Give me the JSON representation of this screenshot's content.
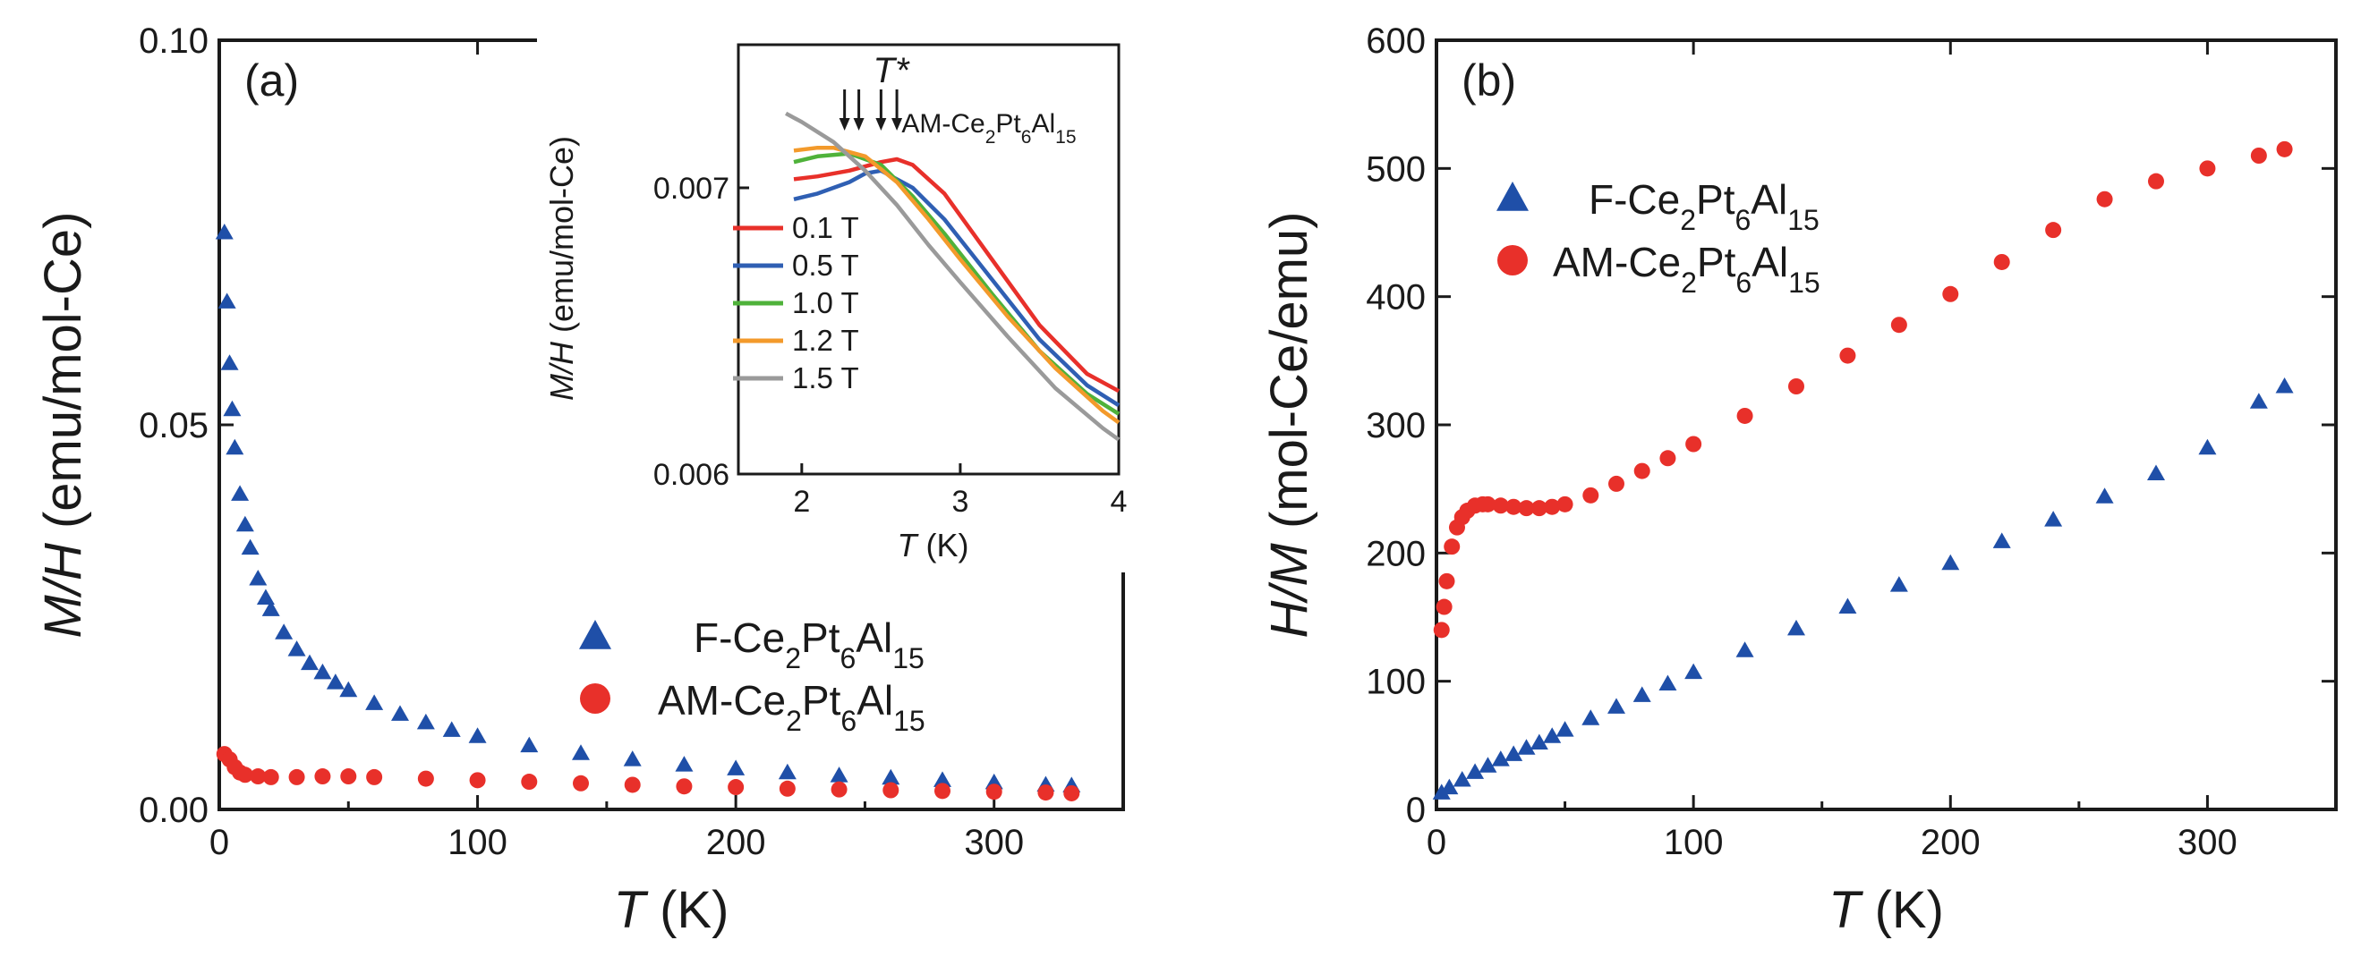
{
  "chart_data": [
    {
      "panel": "(a)",
      "type": "scatter",
      "xlabel_italic": "T",
      "xlabel_unit": "(K)",
      "ylabel_italic": "M/H",
      "ylabel_unit": "(emu/mol-Ce)",
      "xlim": [
        0,
        350
      ],
      "ylim": [
        0,
        0.1
      ],
      "xticks": [
        0,
        100,
        200,
        300
      ],
      "xtick_labels": [
        "0",
        "100",
        "200",
        "300"
      ],
      "yticks": [
        0,
        0.05,
        0.1
      ],
      "ytick_labels": [
        "0.00",
        "0.05",
        "0.10"
      ],
      "legend_position": "lower-right",
      "series": [
        {
          "name": "F-Ce2Pt6Al15",
          "legend_parts": [
            "F-Ce",
            "2",
            "Pt",
            "6",
            "Al",
            "15"
          ],
          "marker": "triangle",
          "color": "#1f4fa8",
          "x": [
            2,
            3,
            4,
            5,
            6,
            8,
            10,
            12,
            15,
            18,
            20,
            25,
            30,
            35,
            40,
            45,
            50,
            60,
            70,
            80,
            90,
            100,
            120,
            140,
            160,
            180,
            200,
            220,
            240,
            260,
            280,
            300,
            320,
            330
          ],
          "y": [
            0.075,
            0.066,
            0.058,
            0.052,
            0.047,
            0.041,
            0.037,
            0.034,
            0.03,
            0.0275,
            0.026,
            0.023,
            0.0208,
            0.019,
            0.0178,
            0.0165,
            0.0155,
            0.0138,
            0.0124,
            0.0113,
            0.0103,
            0.0095,
            0.0083,
            0.0073,
            0.0065,
            0.0058,
            0.0053,
            0.0048,
            0.0044,
            0.0041,
            0.0038,
            0.0035,
            0.0032,
            0.0031
          ]
        },
        {
          "name": "AM-Ce2Pt6Al15",
          "legend_parts": [
            "AM-Ce",
            "2",
            "Pt",
            "6",
            "Al",
            "15"
          ],
          "marker": "circle",
          "color": "#e8302a",
          "x": [
            2,
            4,
            6,
            8,
            10,
            15,
            20,
            30,
            40,
            50,
            60,
            80,
            100,
            120,
            140,
            160,
            180,
            200,
            220,
            240,
            260,
            280,
            300,
            320,
            330
          ],
          "y": [
            0.0072,
            0.0065,
            0.0055,
            0.0048,
            0.0045,
            0.0043,
            0.0042,
            0.0042,
            0.0043,
            0.0043,
            0.0042,
            0.004,
            0.0038,
            0.0036,
            0.0034,
            0.0032,
            0.003,
            0.0029,
            0.0027,
            0.0026,
            0.0025,
            0.0024,
            0.0023,
            0.0022,
            0.0021
          ]
        }
      ]
    },
    {
      "panel": "inset",
      "type": "line",
      "xlabel_italic": "T",
      "xlabel_unit": "(K)",
      "ylabel_italic": "M/H",
      "ylabel_unit": "(emu/mol-Ce)",
      "xlim": [
        1.6,
        4
      ],
      "ylim": [
        0.006,
        0.0075
      ],
      "xticks": [
        2,
        3,
        4
      ],
      "xtick_labels": [
        "2",
        "3",
        "4"
      ],
      "yticks": [
        0.006,
        0.007
      ],
      "ytick_labels": [
        "0.006",
        "0.007"
      ],
      "annotation_tstar": "T*",
      "annotation_sample_parts": [
        "AM-Ce",
        "2",
        "Pt",
        "6",
        "Al",
        "15"
      ],
      "arrows_at_x": [
        2.27,
        2.36,
        2.5,
        2.6
      ],
      "legend_position": "left",
      "series": [
        {
          "name": "0.1 T",
          "color": "#e8302a",
          "x": [
            1.95,
            2.1,
            2.3,
            2.5,
            2.6,
            2.7,
            2.9,
            3.2,
            3.5,
            3.8,
            4.0
          ],
          "y": [
            0.00703,
            0.00704,
            0.00706,
            0.00709,
            0.0071,
            0.00708,
            0.00698,
            0.00675,
            0.00652,
            0.00635,
            0.00629
          ]
        },
        {
          "name": "0.5 T",
          "color": "#2f5fb3",
          "x": [
            1.95,
            2.1,
            2.3,
            2.4,
            2.5,
            2.7,
            2.9,
            3.2,
            3.5,
            3.8,
            4.0
          ],
          "y": [
            0.00696,
            0.00698,
            0.00702,
            0.00705,
            0.00706,
            0.007,
            0.00689,
            0.00668,
            0.00647,
            0.00631,
            0.00624
          ]
        },
        {
          "name": "1.0 T",
          "color": "#4fb23a",
          "x": [
            1.95,
            2.1,
            2.3,
            2.5,
            2.7,
            2.9,
            3.2,
            3.5,
            3.8,
            4.0
          ],
          "y": [
            0.00709,
            0.00711,
            0.00712,
            0.00708,
            0.00697,
            0.00684,
            0.00663,
            0.00643,
            0.00628,
            0.00621
          ]
        },
        {
          "name": "1.2 T",
          "color": "#f39a2b",
          "x": [
            1.95,
            2.1,
            2.2,
            2.4,
            2.6,
            2.8,
            3.0,
            3.3,
            3.6,
            3.9,
            4.0
          ],
          "y": [
            0.00713,
            0.00714,
            0.00714,
            0.00711,
            0.00702,
            0.00689,
            0.00675,
            0.00655,
            0.00637,
            0.00622,
            0.00618
          ]
        },
        {
          "name": "1.5 T",
          "color": "#9a9a9a",
          "x": [
            1.9,
            2.0,
            2.2,
            2.4,
            2.6,
            2.8,
            3.0,
            3.3,
            3.6,
            3.9,
            4.0
          ],
          "y": [
            0.00726,
            0.00723,
            0.00716,
            0.00706,
            0.00694,
            0.0068,
            0.00667,
            0.00648,
            0.0063,
            0.00616,
            0.00612
          ]
        }
      ]
    },
    {
      "panel": "(b)",
      "type": "scatter",
      "xlabel_italic": "T",
      "xlabel_unit": "(K)",
      "ylabel_italic": "H/M",
      "ylabel_unit": "(mol-Ce/emu)",
      "xlim": [
        0,
        350
      ],
      "ylim": [
        0,
        600
      ],
      "xticks": [
        0,
        100,
        200,
        300
      ],
      "xtick_labels": [
        "0",
        "100",
        "200",
        "300"
      ],
      "yticks": [
        0,
        100,
        200,
        300,
        400,
        500,
        600
      ],
      "ytick_labels": [
        "0",
        "100",
        "200",
        "300",
        "400",
        "500",
        "600"
      ],
      "legend_position": "top-left",
      "series": [
        {
          "name": "F-Ce2Pt6Al15",
          "legend_parts": [
            "F-Ce",
            "2",
            "Pt",
            "6",
            "Al",
            "15"
          ],
          "marker": "triangle",
          "color": "#1f4fa8",
          "x": [
            2,
            5,
            10,
            15,
            20,
            25,
            30,
            35,
            40,
            45,
            50,
            60,
            70,
            80,
            90,
            100,
            120,
            140,
            160,
            180,
            200,
            220,
            240,
            260,
            280,
            300,
            320,
            330
          ],
          "y": [
            13,
            17,
            23,
            29,
            34,
            39,
            43,
            48,
            52,
            57,
            62,
            71,
            80,
            89,
            98,
            107,
            124,
            141,
            158,
            175,
            192,
            209,
            226,
            244,
            262,
            282,
            318,
            330
          ]
        },
        {
          "name": "AM-Ce2Pt6Al15",
          "legend_parts": [
            "AM-Ce",
            "2",
            "Pt",
            "6",
            "Al",
            "15"
          ],
          "marker": "circle",
          "color": "#e8302a",
          "x": [
            2,
            3,
            4,
            6,
            8,
            10,
            12,
            15,
            18,
            20,
            25,
            30,
            35,
            40,
            45,
            50,
            60,
            70,
            80,
            90,
            100,
            120,
            140,
            160,
            180,
            200,
            220,
            240,
            260,
            280,
            300,
            320,
            330
          ],
          "y": [
            140,
            158,
            178,
            205,
            220,
            228,
            233,
            237,
            238,
            238,
            237,
            236,
            235,
            235,
            236,
            238,
            245,
            254,
            264,
            274,
            285,
            307,
            330,
            354,
            378,
            402,
            427,
            452,
            476,
            490,
            500,
            510,
            515
          ]
        }
      ]
    }
  ]
}
